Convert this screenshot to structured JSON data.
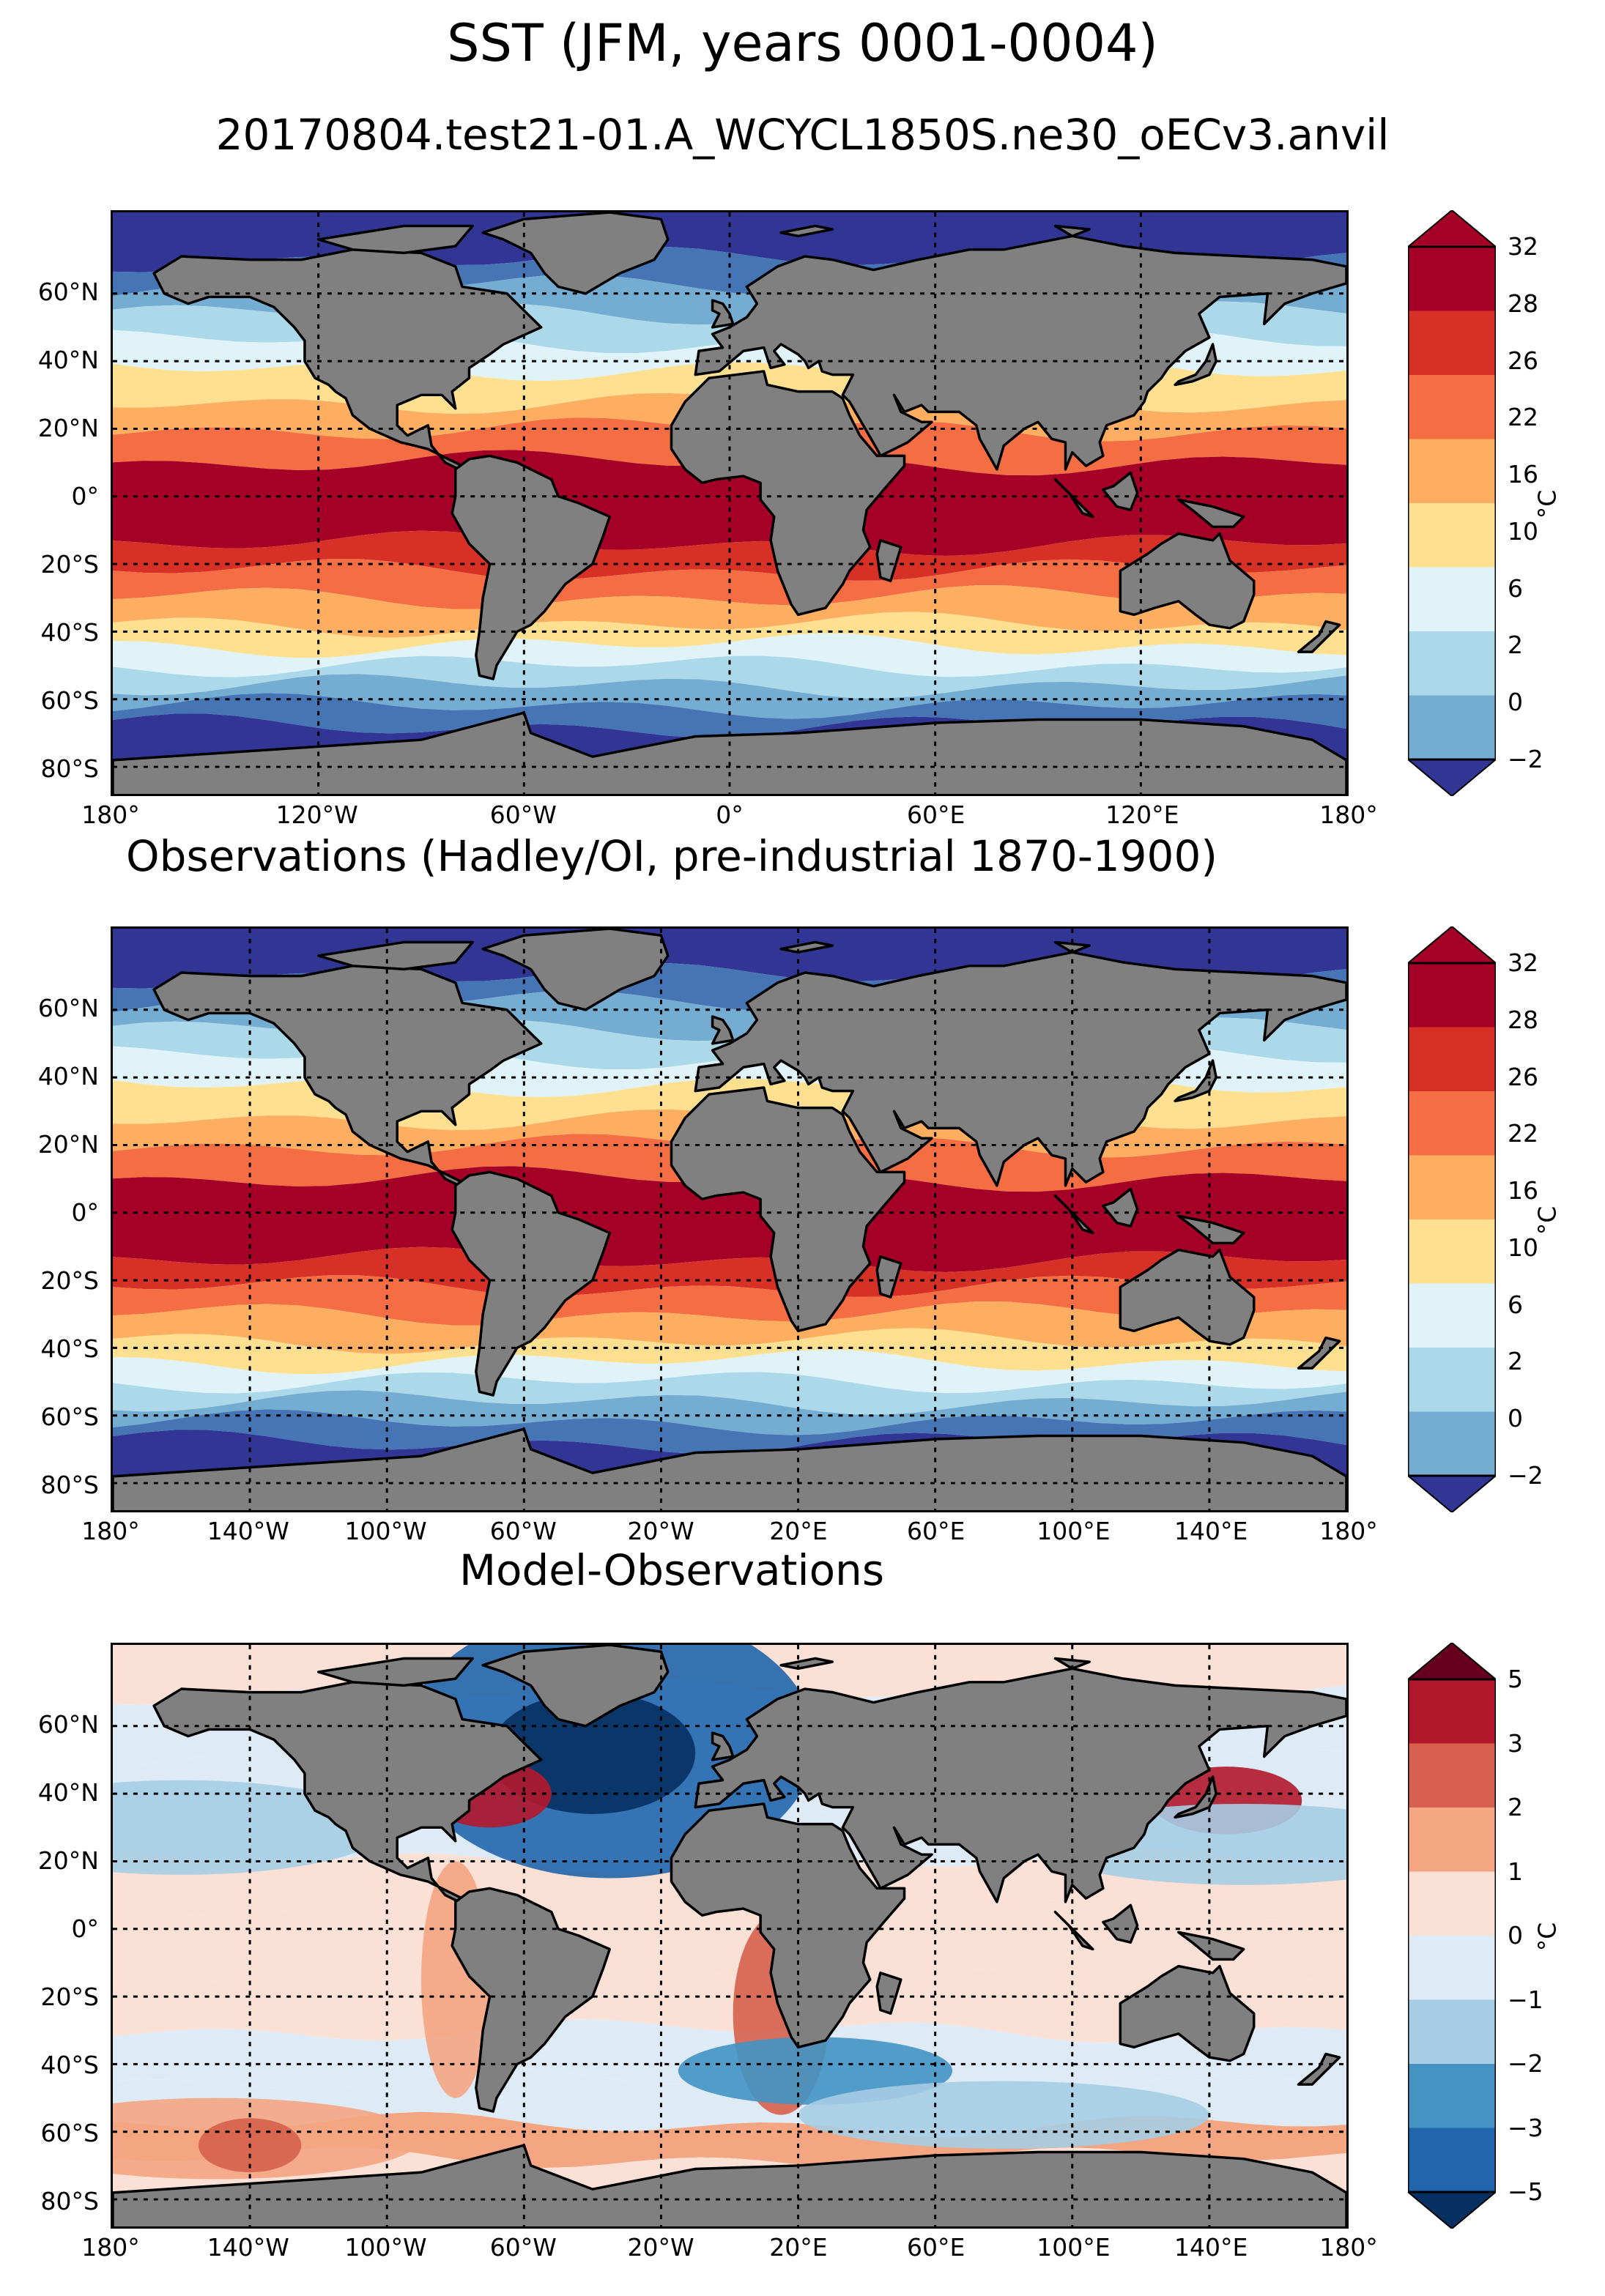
{
  "figure": {
    "title": "SST (JFM, years 0001-0004)",
    "subtitle": "20170804.test21-01.A_WCYCL1850S.ne30_oECv3.anvil"
  },
  "panels": [
    {
      "title": "",
      "lon_ticks": [
        "180°",
        "120°W",
        "60°W",
        "0°",
        "60°E",
        "120°E",
        "180°"
      ],
      "lat_ticks": [
        "60°N",
        "40°N",
        "20°N",
        "0°",
        "20°S",
        "40°S",
        "60°S",
        "80°S"
      ],
      "colorbar": {
        "unit": "°C",
        "ticks": [
          "32",
          "28",
          "26",
          "22",
          "16",
          "10",
          "6",
          "2",
          "0",
          "−2"
        ],
        "colors": [
          "#a50026",
          "#d73027",
          "#f46d43",
          "#fdae61",
          "#fee090",
          "#e0f3f8",
          "#abd9e9",
          "#74add1",
          "#4575b4",
          "#313695"
        ]
      }
    },
    {
      "title": "Observations (Hadley/OI, pre-industrial 1870-1900)",
      "lon_ticks": [
        "180°",
        "140°W",
        "100°W",
        "60°W",
        "20°W",
        "20°E",
        "60°E",
        "100°E",
        "140°E",
        "180°"
      ],
      "lat_ticks": [
        "60°N",
        "40°N",
        "20°N",
        "0°",
        "20°S",
        "40°S",
        "60°S",
        "80°S"
      ],
      "colorbar": {
        "unit": "°C",
        "ticks": [
          "32",
          "28",
          "26",
          "22",
          "16",
          "10",
          "6",
          "2",
          "0",
          "−2"
        ],
        "colors": [
          "#a50026",
          "#d73027",
          "#f46d43",
          "#fdae61",
          "#fee090",
          "#e0f3f8",
          "#abd9e9",
          "#74add1",
          "#4575b4",
          "#313695"
        ]
      }
    },
    {
      "title": "Model-Observations",
      "lon_ticks": [
        "180°",
        "140°W",
        "100°W",
        "60°W",
        "20°W",
        "20°E",
        "60°E",
        "100°E",
        "140°E",
        "180°"
      ],
      "lat_ticks": [
        "60°N",
        "40°N",
        "20°N",
        "0°",
        "20°S",
        "40°S",
        "60°S",
        "80°S"
      ],
      "colorbar": {
        "unit": "°C",
        "ticks": [
          "5",
          "3",
          "2",
          "1",
          "0",
          "−1",
          "−2",
          "−3",
          "−5"
        ],
        "colors": [
          "#67001f",
          "#b2182b",
          "#d6604d",
          "#f4a582",
          "#fbe0d6",
          "#deebf7",
          "#a6cde3",
          "#4393c3",
          "#2166ac",
          "#053061"
        ]
      }
    }
  ],
  "colors": {
    "land": "#808080",
    "coastline": "#000000",
    "gridline": "#000000"
  }
}
